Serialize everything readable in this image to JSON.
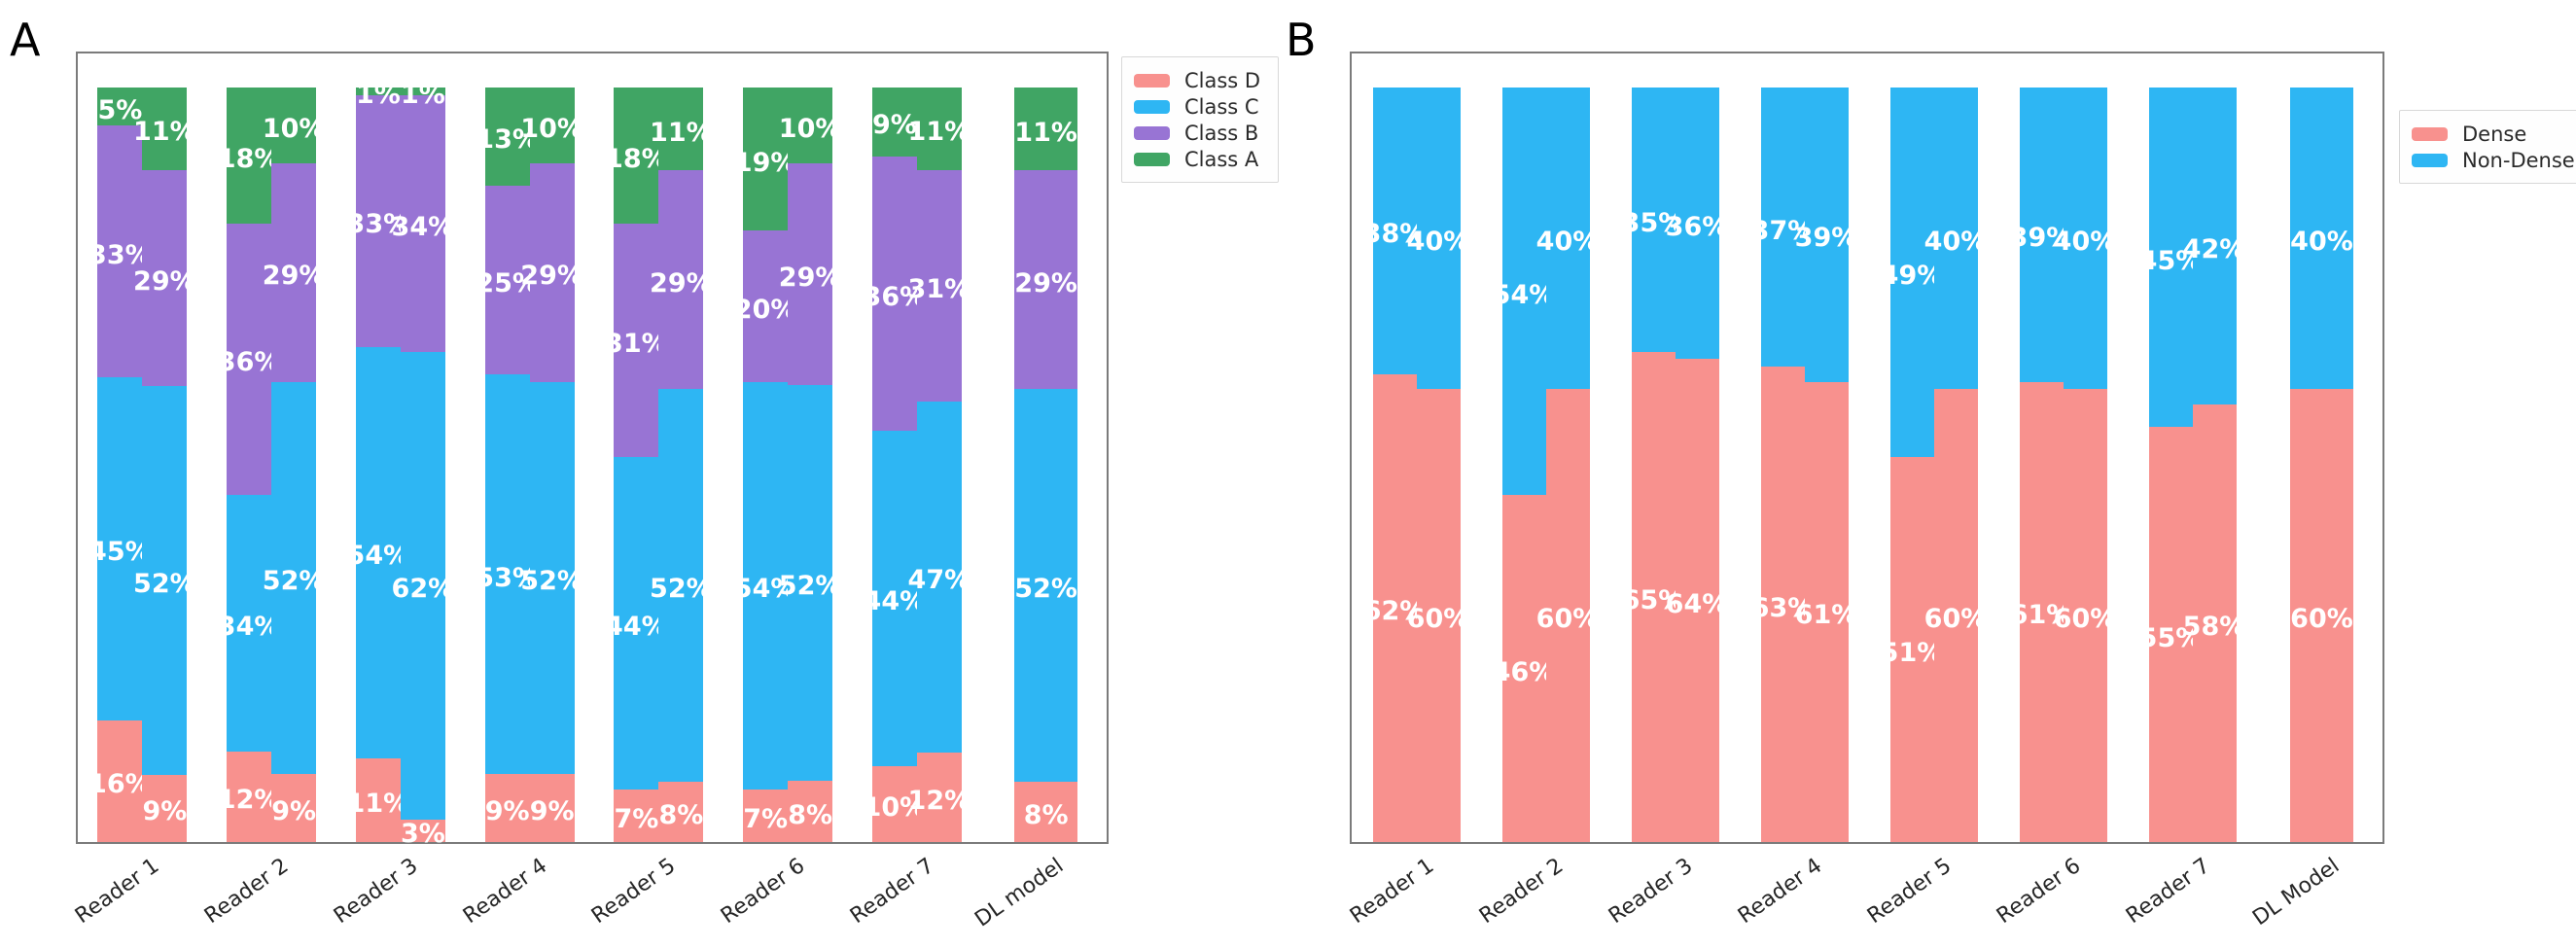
{
  "figure": {
    "panels": [
      {
        "letter": "A"
      },
      {
        "letter": "B"
      }
    ]
  },
  "chart_data": [
    {
      "type": "bar",
      "panel_label": "A",
      "stacked": true,
      "orientation": "vertical",
      "value_suffix": "%",
      "grid": false,
      "y_axis_labels_visible": false,
      "ylim_percent": [
        0,
        100
      ],
      "legend_position": "outside-top-right",
      "label_text_color": "#ffffff",
      "series_bottom_to_top": [
        "Class D",
        "Class C",
        "Class B",
        "Class A"
      ],
      "legend_entries": [
        {
          "label": "Class D",
          "color": "#f8918e"
        },
        {
          "label": "Class C",
          "color": "#2eb6f3"
        },
        {
          "label": "Class B",
          "color": "#9874d4"
        },
        {
          "label": "Class A",
          "color": "#40a564"
        }
      ],
      "categories": [
        "Reader 1",
        "Reader 2",
        "Reader 3",
        "Reader 4",
        "Reader 5",
        "Reader 6",
        "Reader 7",
        "DL model"
      ],
      "groups": [
        {
          "category": "Reader 1",
          "bars": [
            {
              "Class D": 16,
              "Class C": 45,
              "Class B": 33,
              "Class A": 5
            },
            {
              "Class D": 9,
              "Class C": 52,
              "Class B": 29,
              "Class A": 11
            }
          ]
        },
        {
          "category": "Reader 2",
          "bars": [
            {
              "Class D": 12,
              "Class C": 34,
              "Class B": 36,
              "Class A": 18
            },
            {
              "Class D": 9,
              "Class C": 52,
              "Class B": 29,
              "Class A": 10
            }
          ]
        },
        {
          "category": "Reader 3",
          "bars": [
            {
              "Class D": 11,
              "Class C": 54,
              "Class B": 33,
              "Class A": 1
            },
            {
              "Class D": 3,
              "Class C": 62,
              "Class B": 34,
              "Class A": 1
            }
          ]
        },
        {
          "category": "Reader 4",
          "bars": [
            {
              "Class D": 9,
              "Class C": 53,
              "Class B": 25,
              "Class A": 13
            },
            {
              "Class D": 9,
              "Class C": 52,
              "Class B": 29,
              "Class A": 10
            }
          ]
        },
        {
          "category": "Reader 5",
          "bars": [
            {
              "Class D": 7,
              "Class C": 44,
              "Class B": 31,
              "Class A": 18
            },
            {
              "Class D": 8,
              "Class C": 52,
              "Class B": 29,
              "Class A": 11
            }
          ]
        },
        {
          "category": "Reader 6",
          "bars": [
            {
              "Class D": 7,
              "Class C": 54,
              "Class B": 20,
              "Class A": 19
            },
            {
              "Class D": 8,
              "Class C": 52,
              "Class B": 29,
              "Class A": 10
            }
          ]
        },
        {
          "category": "Reader 7",
          "bars": [
            {
              "Class D": 10,
              "Class C": 44,
              "Class B": 36,
              "Class A": 9
            },
            {
              "Class D": 12,
              "Class C": 47,
              "Class B": 31,
              "Class A": 11
            }
          ]
        },
        {
          "category": "DL model",
          "bars": [
            {
              "Class D": 8,
              "Class C": 52,
              "Class B": 29,
              "Class A": 11
            }
          ]
        }
      ]
    },
    {
      "type": "bar",
      "panel_label": "B",
      "stacked": true,
      "orientation": "vertical",
      "value_suffix": "%",
      "grid": false,
      "y_axis_labels_visible": false,
      "ylim_percent": [
        0,
        100
      ],
      "legend_position": "outside-top-right",
      "label_text_color": "#ffffff",
      "series_bottom_to_top": [
        "Dense",
        "Non-Dense"
      ],
      "legend_entries": [
        {
          "label": "Dense",
          "color": "#f8918e"
        },
        {
          "label": "Non-Dense",
          "color": "#2eb6f3"
        }
      ],
      "categories": [
        "Reader 1",
        "Reader 2",
        "Reader 3",
        "Reader 4",
        "Reader 5",
        "Reader 6",
        "Reader 7",
        "DL Model"
      ],
      "groups": [
        {
          "category": "Reader 1",
          "bars": [
            {
              "Dense": 62,
              "Non-Dense": 38
            },
            {
              "Dense": 60,
              "Non-Dense": 40
            }
          ]
        },
        {
          "category": "Reader 2",
          "bars": [
            {
              "Dense": 46,
              "Non-Dense": 54
            },
            {
              "Dense": 60,
              "Non-Dense": 40
            }
          ]
        },
        {
          "category": "Reader 3",
          "bars": [
            {
              "Dense": 65,
              "Non-Dense": 35
            },
            {
              "Dense": 64,
              "Non-Dense": 36
            }
          ]
        },
        {
          "category": "Reader 4",
          "bars": [
            {
              "Dense": 63,
              "Non-Dense": 37
            },
            {
              "Dense": 61,
              "Non-Dense": 39
            }
          ]
        },
        {
          "category": "Reader 5",
          "bars": [
            {
              "Dense": 51,
              "Non-Dense": 49
            },
            {
              "Dense": 60,
              "Non-Dense": 40
            }
          ]
        },
        {
          "category": "Reader 6",
          "bars": [
            {
              "Dense": 61,
              "Non-Dense": 39
            },
            {
              "Dense": 60,
              "Non-Dense": 40
            }
          ]
        },
        {
          "category": "Reader 7",
          "bars": [
            {
              "Dense": 55,
              "Non-Dense": 45
            },
            {
              "Dense": 58,
              "Non-Dense": 42
            }
          ]
        },
        {
          "category": "DL Model",
          "bars": [
            {
              "Dense": 60,
              "Non-Dense": 40
            }
          ]
        }
      ]
    }
  ]
}
